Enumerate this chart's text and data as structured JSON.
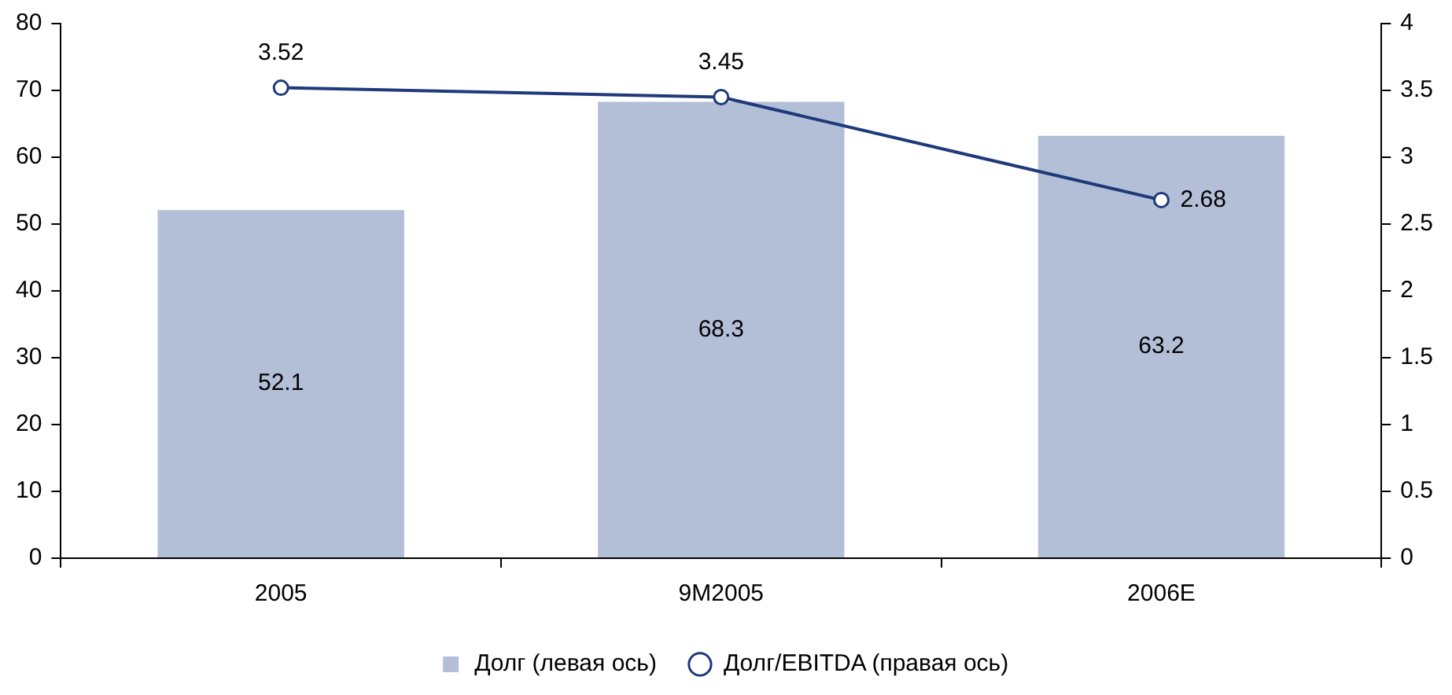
{
  "chart_data": {
    "type": "bar",
    "categories": [
      "2005",
      "9M2005",
      "2006E"
    ],
    "series": [
      {
        "name": "Долг (левая ось)",
        "color": "#b3bfd7",
        "values": [
          52.1,
          68.3,
          63.2
        ]
      },
      {
        "name": "Долг/EBITDA (правая ось)",
        "type": "line",
        "axis": "y2",
        "color": "#1f3a7a",
        "values": [
          3.52,
          3.45,
          2.68
        ]
      }
    ],
    "ylim": [
      0,
      80
    ],
    "yticks": [
      0,
      10,
      20,
      30,
      40,
      50,
      60,
      70,
      80
    ],
    "y2lim": [
      0,
      4
    ],
    "y2ticks": [
      0,
      0.5,
      1,
      1.5,
      2,
      2.5,
      3,
      3.5,
      4
    ],
    "data_labels": true,
    "legend": "bottom",
    "grid": false,
    "marker": "circle",
    "line_style": "solid"
  }
}
